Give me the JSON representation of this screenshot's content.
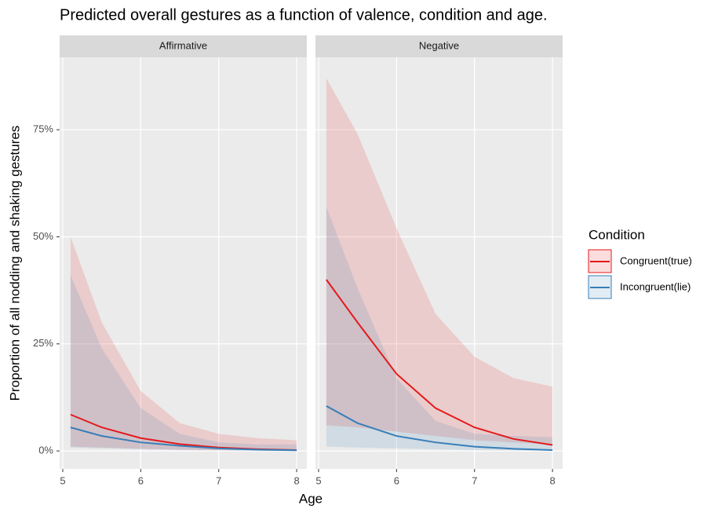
{
  "chart_data": {
    "type": "line",
    "title": "Predicted overall gestures as a function of valence, condition and age.",
    "x_label": "Age",
    "y_label": "Proportion of all nodding and shaking gestures",
    "legend_title": "Condition",
    "xlim": [
      4.96,
      8.13
    ],
    "xticks": [
      5,
      6,
      7,
      8
    ],
    "ylim": [
      -4.2,
      91.9
    ],
    "yticks": [
      {
        "value": 0,
        "label": "0%"
      },
      {
        "value": 25,
        "label": "25%"
      },
      {
        "value": 50,
        "label": "50%"
      },
      {
        "value": 75,
        "label": "75%"
      }
    ],
    "grid": true,
    "x": [
      5.1,
      5.5,
      6,
      6.5,
      7,
      7.5,
      8
    ],
    "panels": [
      {
        "title": "Affirmative",
        "series": [
          {
            "name": "Congruent(true)",
            "color": "#e41a1c",
            "values": [
              8.5,
              5.5,
              3,
              1.6,
              0.8,
              0.4,
              0.2
            ],
            "upper": [
              50,
              30,
              14,
              6.5,
              4,
              3,
              2.5
            ],
            "lower": [
              1,
              0.8,
              0.5,
              0.3,
              0.2,
              0.1,
              0.05
            ]
          },
          {
            "name": "Incongruent(lie)",
            "color": "#377eb8",
            "values": [
              5.5,
              3.5,
              2,
              1.2,
              0.6,
              0.3,
              0.15
            ],
            "upper": [
              41,
              24,
              10,
              4,
              2,
              1.5,
              1.5
            ],
            "lower": [
              0.8,
              0.6,
              0.4,
              0.2,
              0.1,
              0.05,
              0.02
            ]
          }
        ]
      },
      {
        "title": "Negative",
        "series": [
          {
            "name": "Congruent(true)",
            "color": "#e41a1c",
            "values": [
              40,
              30,
              18,
              10,
              5.5,
              2.8,
              1.4
            ],
            "upper": [
              87,
              74,
              52,
              32,
              22,
              17,
              15
            ],
            "lower": [
              6,
              5.5,
              4.5,
              3.5,
              2.5,
              2,
              1.5
            ]
          },
          {
            "name": "Incongruent(lie)",
            "color": "#377eb8",
            "values": [
              10.5,
              6.5,
              3.5,
              2,
              1,
              0.5,
              0.2
            ],
            "upper": [
              57,
              38,
              17,
              7,
              4,
              3.5,
              3.2
            ],
            "lower": [
              1,
              0.8,
              0.6,
              0.4,
              0.2,
              0.1,
              0.05
            ]
          }
        ]
      }
    ]
  }
}
